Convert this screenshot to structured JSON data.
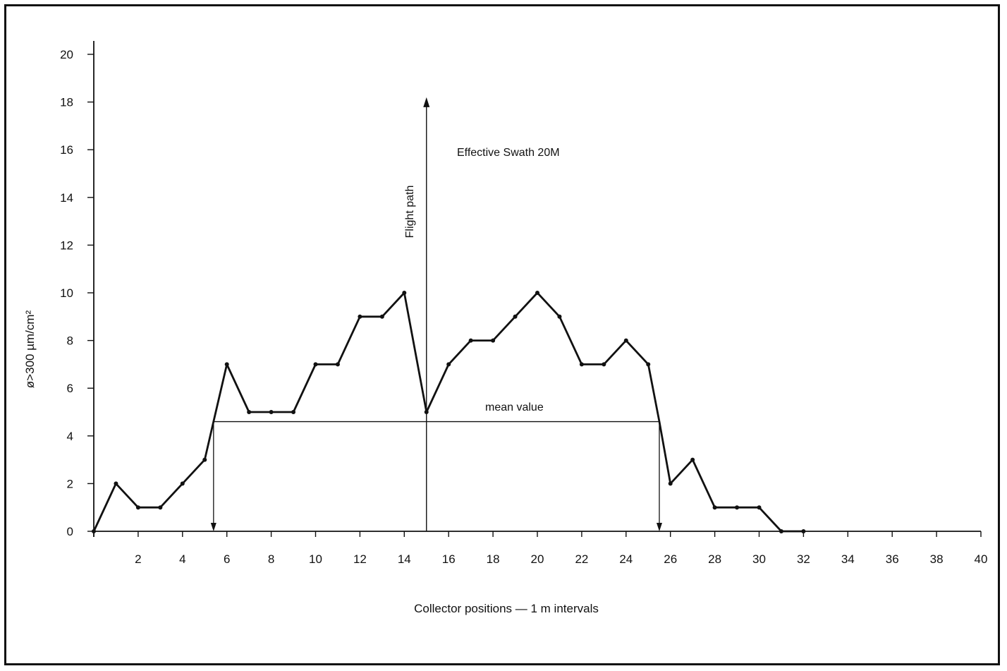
{
  "chart_data": {
    "type": "line",
    "xlabel": "Collector positions — 1 m intervals",
    "ylabel": "ø>300  µm/cm²",
    "xlim": [
      0,
      40
    ],
    "ylim": [
      0,
      20
    ],
    "x_ticks": [
      2,
      4,
      6,
      8,
      10,
      12,
      14,
      16,
      18,
      20,
      22,
      24,
      26,
      28,
      30,
      32,
      34,
      36,
      38,
      40
    ],
    "y_ticks": [
      0,
      2,
      4,
      6,
      8,
      10,
      12,
      14,
      16,
      18,
      20
    ],
    "grid": false,
    "series": [
      {
        "x": [
          0,
          1,
          2,
          3,
          4,
          5,
          5.4,
          6,
          7,
          8,
          9,
          10,
          11,
          12,
          13,
          14,
          15,
          16,
          17,
          18,
          19,
          20,
          21,
          22,
          23,
          24,
          25,
          25.5,
          26,
          27,
          28,
          29,
          30,
          31,
          32
        ],
        "y": [
          0,
          2,
          1,
          1,
          2,
          3,
          4.6,
          7,
          5,
          5,
          5,
          7,
          7,
          9,
          9,
          10,
          5,
          7,
          8,
          8,
          9,
          10,
          9,
          7,
          7,
          8,
          7,
          4.6,
          2,
          3,
          1,
          1,
          1,
          0,
          0
        ],
        "markers": [
          true,
          true,
          true,
          true,
          true,
          true,
          false,
          true,
          true,
          true,
          true,
          true,
          true,
          true,
          true,
          true,
          true,
          true,
          true,
          true,
          true,
          true,
          true,
          true,
          true,
          true,
          true,
          false,
          true,
          true,
          true,
          true,
          true,
          true,
          true
        ]
      }
    ],
    "annotations": {
      "mean_value": {
        "label": "mean value",
        "y": 4.6,
        "x_start": 5.4,
        "x_end": 25.5
      },
      "flight_path": {
        "label": "Flight path",
        "x": 15,
        "y_top": 18.2
      },
      "swath": {
        "label": "Effective Swath 20M"
      }
    },
    "colors": {
      "line": "#111111",
      "background": "#ffffff"
    }
  }
}
